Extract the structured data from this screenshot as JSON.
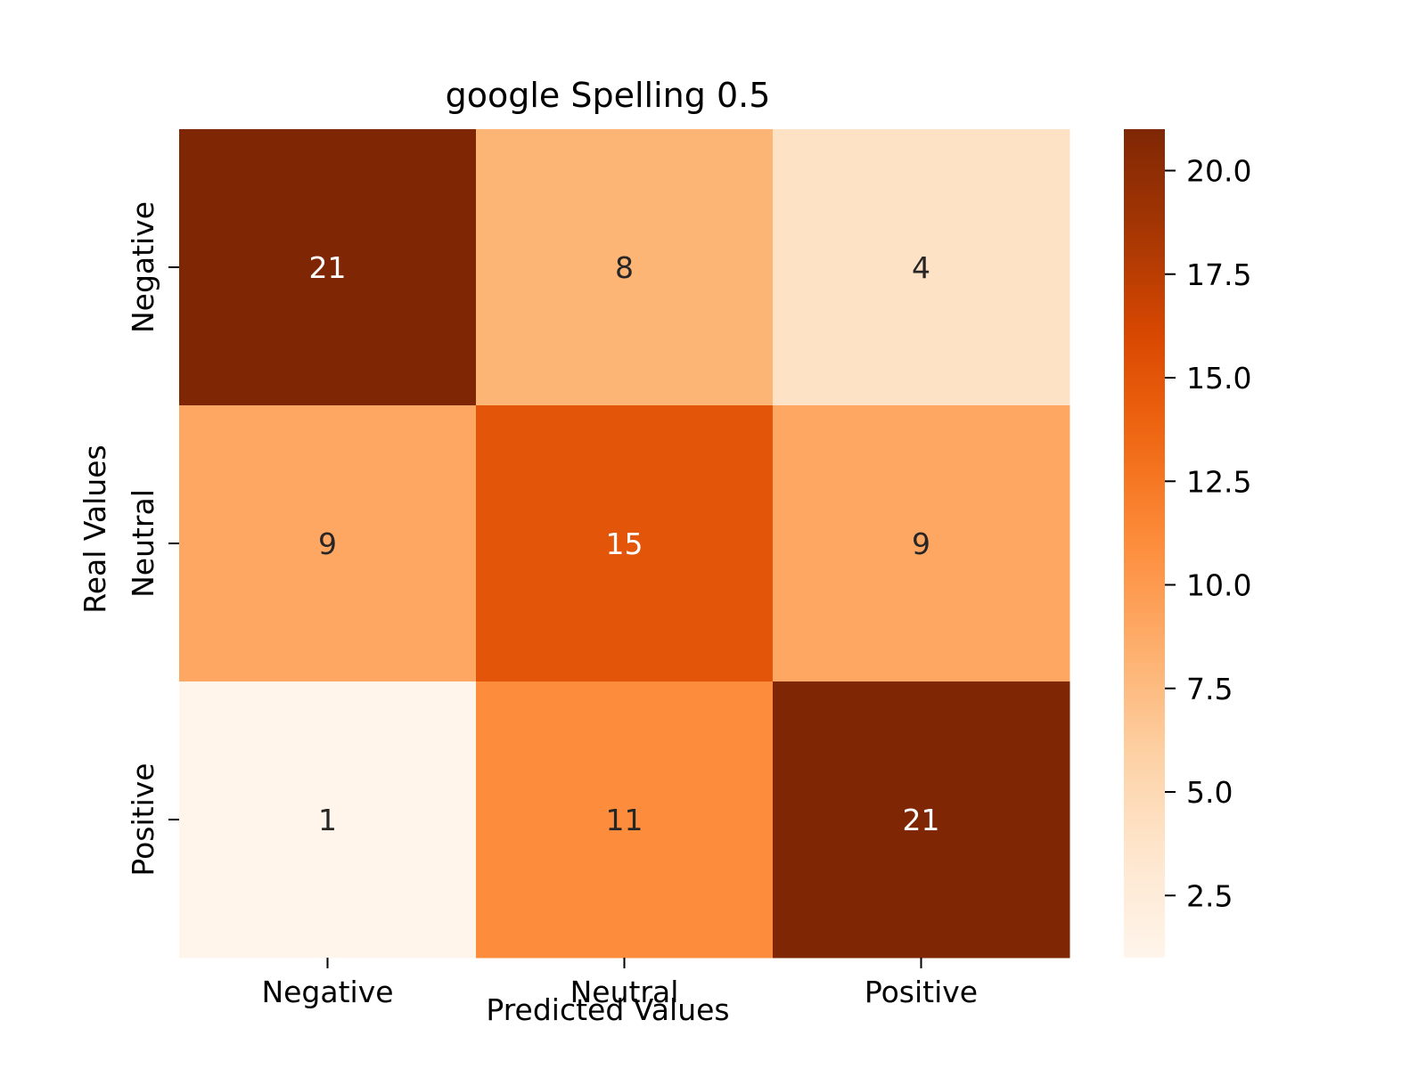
{
  "chart_data": {
    "type": "heatmap",
    "title": "google Spelling 0.5",
    "xlabel": "Predicted Values",
    "ylabel": "Real Values",
    "x_categories": [
      "Negative",
      "Neutral",
      "Positive"
    ],
    "y_categories": [
      "Negative",
      "Neutral",
      "Positive"
    ],
    "values": [
      [
        21,
        8,
        4
      ],
      [
        9,
        15,
        9
      ],
      [
        1,
        11,
        21
      ]
    ],
    "colormap": "Oranges",
    "colorbar": {
      "range": [
        1,
        21
      ],
      "ticks": [
        2.5,
        5.0,
        7.5,
        10.0,
        12.5,
        15.0,
        17.5,
        20.0
      ],
      "tick_labels": [
        "2.5",
        "5.0",
        "7.5",
        "10.0",
        "12.5",
        "15.0",
        "17.5",
        "20.0"
      ]
    },
    "grid": false
  }
}
